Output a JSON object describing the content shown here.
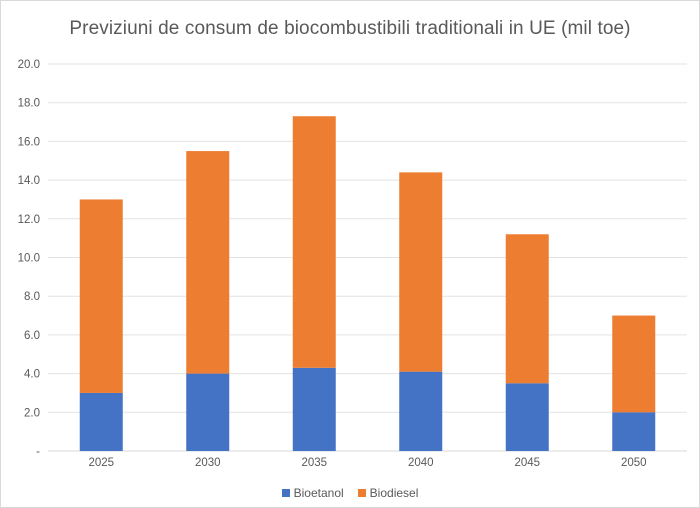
{
  "chart_data": {
    "type": "bar",
    "stacked": true,
    "title": "Previziuni de consum de biocombustibili traditionali in  UE (mil toe)",
    "xlabel": "",
    "ylabel": "",
    "categories": [
      "2025",
      "2030",
      "2035",
      "2040",
      "2045",
      "2050"
    ],
    "series": [
      {
        "name": "Bioetanol",
        "color": "#4472c4",
        "values": [
          3.0,
          4.0,
          4.3,
          4.1,
          3.5,
          2.0
        ]
      },
      {
        "name": "Biodiesel",
        "color": "#ed7d31",
        "values": [
          10.0,
          11.5,
          13.0,
          10.3,
          7.7,
          5.0
        ]
      }
    ],
    "ylim": [
      0,
      20
    ],
    "yticks": [
      "-",
      "2.0",
      "4.0",
      "6.0",
      "8.0",
      "10.0",
      "12.0",
      "14.0",
      "16.0",
      "18.0",
      "20.0"
    ],
    "grid": true,
    "legend_position": "bottom"
  }
}
